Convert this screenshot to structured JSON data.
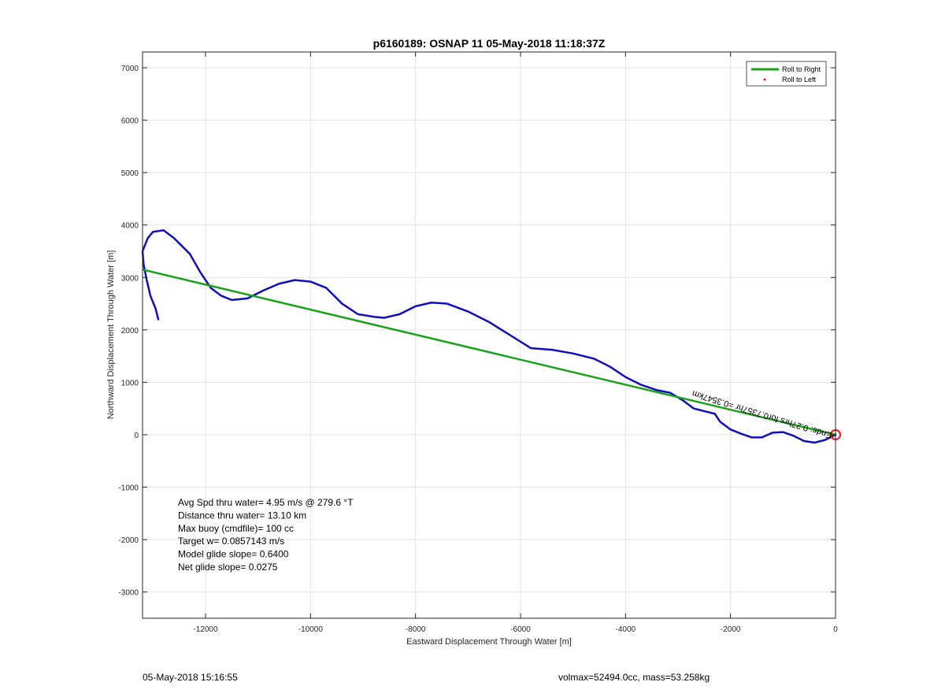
{
  "chart_data": {
    "type": "line",
    "title": "p6160189: OSNAP 11 05-May-2018 11:18:37Z",
    "xlabel": "Eastward Displacement Through Water [m]",
    "ylabel": "Northward Displacement Through Water [m]",
    "xlim": [
      -13200,
      0
    ],
    "ylim": [
      -3500,
      7300
    ],
    "xticks": [
      -12000,
      -10000,
      -8000,
      -6000,
      -4000,
      -2000,
      0
    ],
    "yticks": [
      -3000,
      -2000,
      -1000,
      0,
      1000,
      2000,
      3000,
      4000,
      5000,
      6000,
      7000
    ],
    "grid": true,
    "legend": {
      "placement": "top-right",
      "entries": [
        {
          "label": "Roll to Right",
          "style": "line",
          "color": "#1aa31a"
        },
        {
          "label": "Roll to Left",
          "style": "dot",
          "color": "#ff0000"
        }
      ]
    },
    "series": [
      {
        "name": "Roll to Right",
        "color": "#1aa31a",
        "x": [
          0,
          -13200
        ],
        "y": [
          0,
          3150
        ]
      },
      {
        "color": "#1010b8",
        "x": [
          0,
          -200,
          -400,
          -600,
          -800,
          -1000,
          -1200,
          -1400,
          -1600,
          -1800,
          -2000,
          -2200,
          -2300,
          -2500,
          -2700,
          -2900,
          -3150,
          -3400,
          -3700,
          -4000,
          -4300,
          -4600,
          -5000,
          -5400,
          -5800,
          -6200,
          -6600,
          -7000,
          -7400,
          -7700,
          -8000,
          -8300,
          -8600,
          -8800,
          -9100,
          -9400,
          -9700,
          -10000,
          -10300,
          -10600,
          -10900,
          -11200,
          -11500,
          -11700,
          -11900,
          -12100,
          -12300,
          -12600,
          -12800,
          -13000,
          -13100,
          -13200,
          -13180,
          -13120,
          -13050,
          -12950,
          -12900
        ],
        "y": [
          0,
          -100,
          -150,
          -120,
          -20,
          50,
          40,
          -50,
          -50,
          20,
          100,
          250,
          400,
          450,
          500,
          650,
          800,
          850,
          950,
          1100,
          1300,
          1450,
          1550,
          1620,
          1650,
          1900,
          2150,
          2350,
          2500,
          2520,
          2450,
          2300,
          2230,
          2250,
          2300,
          2500,
          2800,
          2920,
          2950,
          2880,
          2750,
          2600,
          2570,
          2650,
          2800,
          3100,
          3450,
          3750,
          3900,
          3870,
          3750,
          3500,
          3250,
          2950,
          2650,
          2400,
          2200
        ]
      }
    ],
    "annotation": "Ends: 0.27hrs for0.7357hr =0.3547km",
    "marker": {
      "x": 0,
      "y": 0,
      "color": "#e02020"
    },
    "stats": [
      "Avg Spd thru water=  4.95 m/s @ 279.6 °T",
      "Distance thru water= 13.10 km",
      "Max buoy (cmdfile)= 100 cc",
      "Target w= 0.0857143 m/s",
      "Model glide slope= 0.6400",
      "Net glide slope= 0.0275"
    ]
  },
  "footer": {
    "timestamp": "05-May-2018 15:16:55",
    "info": "volmax=52494.0cc, mass=53.258kg"
  }
}
